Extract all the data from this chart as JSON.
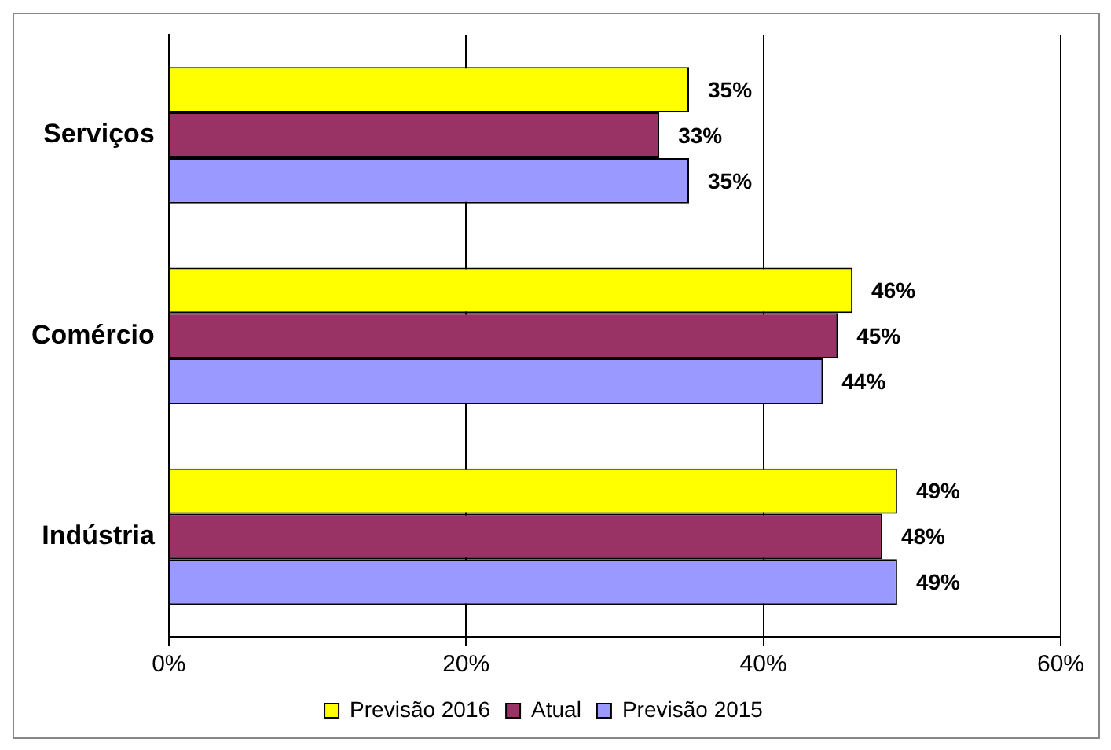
{
  "chart_data": {
    "type": "bar",
    "orientation": "horizontal",
    "categories": [
      "Serviços",
      "Comércio",
      "Indústria"
    ],
    "series": [
      {
        "name": "Previsão 2016",
        "color": "#ffff00",
        "values": [
          35,
          46,
          49
        ],
        "value_labels": [
          "35%",
          "46%",
          "49%"
        ]
      },
      {
        "name": "Atual",
        "color": "#993366",
        "values": [
          33,
          45,
          48
        ],
        "value_labels": [
          "33%",
          "45%",
          "48%"
        ]
      },
      {
        "name": "Previsão 2015",
        "color": "#9999ff",
        "values": [
          35,
          44,
          49
        ],
        "value_labels": [
          "35%",
          "44%",
          "49%"
        ]
      }
    ],
    "xlim": [
      0,
      60
    ],
    "xticks": [
      {
        "value": 0,
        "label": "0%"
      },
      {
        "value": 20,
        "label": "20%"
      },
      {
        "value": 40,
        "label": "40%"
      },
      {
        "value": 60,
        "label": "60%"
      }
    ],
    "grid": "x",
    "legend": "bottom"
  }
}
